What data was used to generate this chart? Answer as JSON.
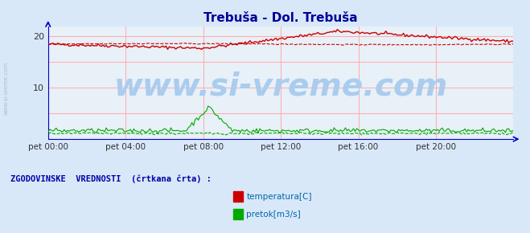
{
  "title": "Trebuša - Dol. Trebuša",
  "title_color": "#000099",
  "bg_color": "#d8e8f8",
  "plot_bg_color": "#e8f0f8",
  "grid_color": "#ffaaaa",
  "axis_color": "#0000cc",
  "ylim": [
    0,
    22
  ],
  "xlim": [
    0,
    288
  ],
  "yticks": [
    10,
    20
  ],
  "xtick_labels": [
    "pet 00:00",
    "pet 04:00",
    "pet 08:00",
    "pet 12:00",
    "pet 16:00",
    "pet 20:00"
  ],
  "xtick_positions": [
    0,
    48,
    96,
    144,
    192,
    240
  ],
  "watermark": "www.si-vreme.com",
  "watermark_color": "#aaccee",
  "watermark_fontsize": 28,
  "side_label": "www.si-vreme.com",
  "legend_label": "ZGODOVINSKE  VREDNOSTI  (črtkana črta) :",
  "legend_items": [
    "temperatura[C]",
    "pretok[m3/s]"
  ],
  "legend_colors": [
    "#cc0000",
    "#00aa00"
  ],
  "temp_color": "#cc0000",
  "flow_color": "#00aa00"
}
